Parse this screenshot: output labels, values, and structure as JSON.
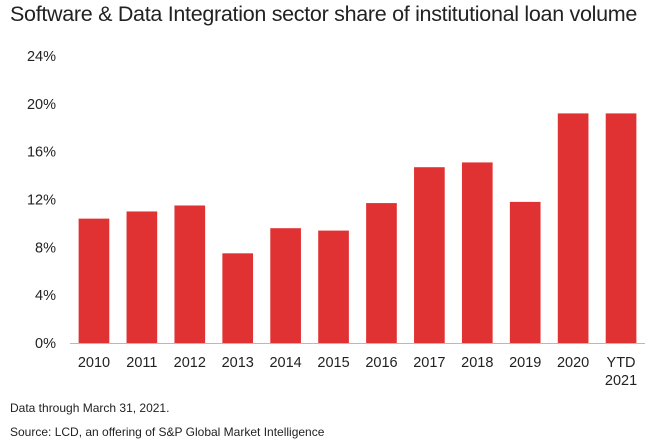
{
  "chart_data": {
    "type": "bar",
    "title": "Software & Data Integration sector share of institutional loan volume",
    "categories": [
      "2010",
      "2011",
      "2012",
      "2013",
      "2014",
      "2015",
      "2016",
      "2017",
      "2018",
      "2019",
      "2020",
      "YTD 2021"
    ],
    "category_lines": [
      [
        "2010"
      ],
      [
        "2011"
      ],
      [
        "2012"
      ],
      [
        "2013"
      ],
      [
        "2014"
      ],
      [
        "2015"
      ],
      [
        "2016"
      ],
      [
        "2017"
      ],
      [
        "2018"
      ],
      [
        "2019"
      ],
      [
        "2020"
      ],
      [
        "YTD",
        "2021"
      ]
    ],
    "values": [
      10.4,
      11.0,
      11.5,
      7.5,
      9.6,
      9.4,
      11.7,
      14.7,
      15.1,
      11.8,
      19.2,
      19.2
    ],
    "unit": "%",
    "ylim": [
      0,
      24
    ],
    "yticks": [
      0,
      4,
      8,
      12,
      16,
      20,
      24
    ],
    "ytick_labels": [
      "0%",
      "4%",
      "8%",
      "12%",
      "16%",
      "20%",
      "24%"
    ],
    "xlabel": "",
    "ylabel": "",
    "grid": false,
    "bar_color": "#e03233"
  },
  "note": "Data through March 31, 2021.",
  "source": "Source: LCD, an offering of S&P Global Market Intelligence"
}
